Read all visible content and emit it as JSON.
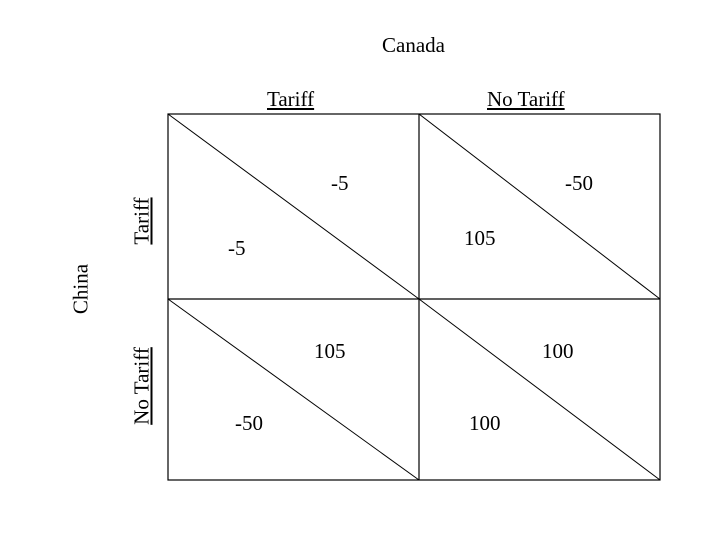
{
  "players": {
    "column": "Canada",
    "row": "China"
  },
  "strategies": {
    "column": [
      "Tariff",
      "No Tariff"
    ],
    "row": [
      "Tariff",
      "No Tariff"
    ]
  },
  "payoffs": {
    "tariff_tariff": {
      "canada": "-5",
      "china": "-5"
    },
    "tariff_notariff": {
      "canada": "-50",
      "china": "105"
    },
    "notariff_tariff": {
      "canada": "105",
      "china": "-50"
    },
    "notariff_notariff": {
      "canada": "100",
      "china": "100"
    }
  }
}
